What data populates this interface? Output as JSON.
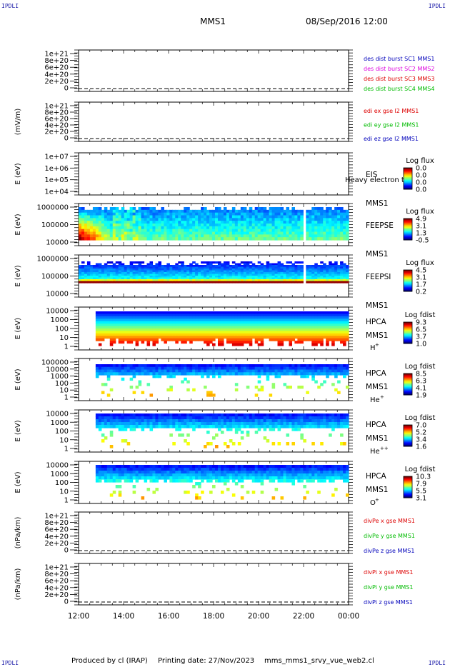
{
  "corner_tag": "IPDLI",
  "header": {
    "spacecraft": "MMS1",
    "datetime": "08/Sep/2016 12:00"
  },
  "footer": {
    "produced_by": "Produced by cl (IRAP)",
    "printing_date": "Printing date: 27/Nov/2023",
    "file": "mms_mms1_srvy_vue_web2.cl"
  },
  "colors": {
    "red": "#dd0000",
    "magenta": "#dd00dd",
    "blue": "#0000bb",
    "green": "#00bb00"
  },
  "x_axis": {
    "ticks": [
      "12:00",
      "14:00",
      "16:00",
      "18:00",
      "20:00",
      "22:00",
      "00:00"
    ],
    "range_hours": [
      12,
      24
    ]
  },
  "chart_data": [
    {
      "type": "line",
      "id": "des_dist",
      "ylabel": "",
      "ytick_labels": [
        "1e+21",
        "8e+20",
        "6e+20",
        "4e+20",
        "2e+20",
        "0"
      ],
      "ylim": [
        0,
        1e+21
      ],
      "series": [
        {
          "name": "des dist burst SC1 MMS1",
          "color": "blue",
          "values": [
            0,
            0
          ]
        },
        {
          "name": "des dist burst SC2 MMS2",
          "color": "magenta",
          "values": [
            0,
            0
          ]
        },
        {
          "name": "des dist burst SC3 MMS3",
          "color": "red",
          "values": [
            0,
            0
          ]
        },
        {
          "name": "des dist burst SC4 MMS4",
          "color": "green",
          "values": [
            0,
            0
          ]
        }
      ],
      "zero_line": "dashed"
    },
    {
      "type": "line",
      "id": "edi",
      "ylabel": "(mV/m)",
      "ytick_labels": [
        "1e+21",
        "8e+20",
        "6e+20",
        "4e+20",
        "2e+20",
        "0"
      ],
      "ylim": [
        0,
        1e+21
      ],
      "series": [
        {
          "name": "edi ex gse l2 MMS1",
          "color": "red",
          "values": [
            0,
            0
          ]
        },
        {
          "name": "edi ey gse l2 MMS1",
          "color": "green",
          "values": [
            0,
            0
          ]
        },
        {
          "name": "edi ez gse l2 MMS1",
          "color": "blue",
          "values": [
            0,
            0
          ]
        }
      ],
      "zero_line": "dashed"
    },
    {
      "type": "heatmap",
      "id": "eis",
      "ylabel": "E (eV)",
      "ytick_labels": [
        "1e+07",
        "1e+06",
        "1e+05",
        "1e+04"
      ],
      "instrument_labels": [
        "EIS",
        "MMS1"
      ],
      "overlay_text": "Heavy electron to",
      "colorbar": {
        "title": "Log flux",
        "ticks": [
          "0.0",
          "0.0",
          "0.0",
          "0.0"
        ]
      }
    },
    {
      "type": "heatmap",
      "id": "feepse",
      "ylabel": "E (eV)",
      "ytick_labels": [
        "1000000",
        "100000",
        "10000"
      ],
      "instrument_labels": [
        "FEEPSE",
        "MMS1"
      ],
      "colorbar": {
        "title": "Log flux",
        "ticks": [
          "4.9",
          "3.1",
          "1.3",
          "-0.5"
        ]
      }
    },
    {
      "type": "heatmap",
      "id": "feepsi",
      "ylabel": "E (eV)",
      "ytick_labels": [
        "1000000",
        "100000",
        "10000"
      ],
      "instrument_labels": [
        "FEEPSI",
        "MMS1"
      ],
      "colorbar": {
        "title": "Log flux",
        "ticks": [
          "4.5",
          "3.1",
          "1.7",
          "0.2"
        ]
      }
    },
    {
      "type": "heatmap",
      "id": "hpca_h",
      "ylabel": "E (eV)",
      "ytick_labels": [
        "10000",
        "1000",
        "100",
        "10",
        "1"
      ],
      "instrument_labels": [
        "HPCA",
        "MMS1"
      ],
      "species": "H",
      "species_sup": "+",
      "colorbar": {
        "title": "Log fdist",
        "ticks": [
          "9.3",
          "6.5",
          "3.7",
          "1.0"
        ]
      }
    },
    {
      "type": "heatmap",
      "id": "hpca_he",
      "ylabel": "E (eV)",
      "ytick_labels": [
        "100000",
        "10000",
        "1000",
        "100",
        "10",
        "1"
      ],
      "instrument_labels": [
        "HPCA",
        "MMS1"
      ],
      "species": "He",
      "species_sup": "+",
      "colorbar": {
        "title": "Log fdist",
        "ticks": [
          "8.5",
          "6.3",
          "4.1",
          "1.9"
        ]
      }
    },
    {
      "type": "heatmap",
      "id": "hpca_hepp",
      "ylabel": "E (eV)",
      "ytick_labels": [
        "10000",
        "1000",
        "100",
        "10",
        "1"
      ],
      "instrument_labels": [
        "HPCA",
        "MMS1"
      ],
      "species": "He",
      "species_sup": "++",
      "colorbar": {
        "title": "Log fdist",
        "ticks": [
          "7.0",
          "5.2",
          "3.4",
          "1.6"
        ]
      }
    },
    {
      "type": "heatmap",
      "id": "hpca_o",
      "ylabel": "E (eV)",
      "ytick_labels": [
        "10000",
        "1000",
        "100",
        "10",
        "1"
      ],
      "instrument_labels": [
        "HPCA",
        "MMS1"
      ],
      "species": "O",
      "species_sup": "+",
      "colorbar": {
        "title": "Log fdist",
        "ticks": [
          "10.3",
          "7.9",
          "5.5",
          "3.1"
        ]
      }
    },
    {
      "type": "line",
      "id": "divpe",
      "ylabel": "(nPa/km)",
      "ytick_labels": [
        "1e+21",
        "8e+20",
        "6e+20",
        "4e+20",
        "2e+20",
        "0"
      ],
      "ylim": [
        0,
        1e+21
      ],
      "series": [
        {
          "name": "divPe x gse MMS1",
          "color": "red",
          "values": [
            0,
            0
          ]
        },
        {
          "name": "divPe y gse MMS1",
          "color": "green",
          "values": [
            0,
            0
          ]
        },
        {
          "name": "divPe z gse MMS1",
          "color": "blue",
          "values": [
            0,
            0
          ]
        }
      ],
      "zero_line": "dashed"
    },
    {
      "type": "line",
      "id": "divpi",
      "ylabel": "(nPa/km)",
      "ytick_labels": [
        "1e+21",
        "8e+20",
        "6e+20",
        "4e+20",
        "2e+20",
        "0"
      ],
      "ylim": [
        0,
        1e+21
      ],
      "series": [
        {
          "name": "divPi x gse MMS1",
          "color": "red",
          "values": [
            0,
            0
          ]
        },
        {
          "name": "divPi y gse MMS1",
          "color": "green",
          "values": [
            0,
            0
          ]
        },
        {
          "name": "divPi z gse MMS1",
          "color": "blue",
          "values": [
            0,
            0
          ]
        }
      ],
      "zero_line": "dashed"
    }
  ]
}
